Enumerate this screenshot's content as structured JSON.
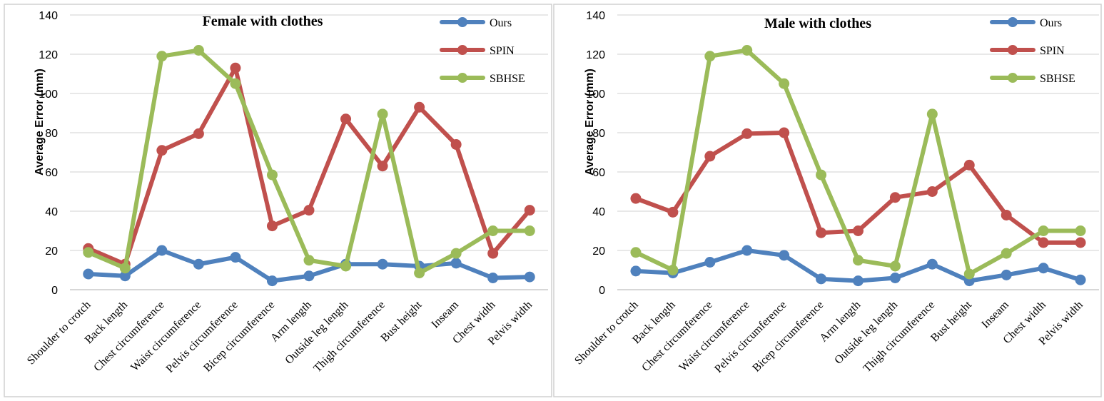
{
  "colors": {
    "Ours": "#4f81bd",
    "SPIN": "#c0504d",
    "SBHSE": "#9bbb59"
  },
  "chart_data": [
    {
      "type": "line",
      "title": "Female with clothes",
      "ylabel": "Average Error (mm)",
      "xlabel": "",
      "ylim": [
        0,
        140
      ],
      "yticks": [
        "0",
        "20",
        "40",
        "60",
        "80",
        "100",
        "120",
        "140"
      ],
      "grid": true,
      "legend": "top-right",
      "categories": [
        "Shoulder to crotch",
        "Back length",
        "Chest circumference",
        "Waist circumference",
        "Pelvis circumference",
        "Bicep circumference",
        "Arm length",
        "Outside leg length",
        "Thigh circumference",
        "Bust height",
        "Inseam",
        "Chest width",
        "Pelvis width"
      ],
      "series": [
        {
          "name": "Ours",
          "values": [
            8,
            7,
            20,
            13,
            16.5,
            4.5,
            7,
            13,
            13,
            12,
            13.5,
            6,
            6.5
          ]
        },
        {
          "name": "SPIN",
          "values": [
            21,
            13,
            71,
            79.5,
            113,
            32.5,
            40.5,
            87,
            63,
            93,
            74,
            18.5,
            40.5
          ]
        },
        {
          "name": "SBHSE",
          "values": [
            19,
            11,
            119,
            122,
            105,
            58.5,
            15,
            12,
            89.5,
            8.5,
            18.5,
            30,
            30
          ]
        }
      ]
    },
    {
      "type": "line",
      "title": "Male with clothes",
      "ylabel": "Average Error (mm)",
      "xlabel": "",
      "ylim": [
        0,
        140
      ],
      "yticks": [
        "0",
        "20",
        "40",
        "60",
        "80",
        "100",
        "120",
        "140"
      ],
      "grid": true,
      "legend": "top-right",
      "categories": [
        "Shoulder to crotch",
        "Back length",
        "Chest circumference",
        "Waist circumference",
        "Pelvis circumference",
        "Bicep circumference",
        "Arm length",
        "Outside leg length",
        "Thigh circumference",
        "Bust height",
        "Inseam",
        "Chest width",
        "Pelvis width"
      ],
      "series": [
        {
          "name": "Ours",
          "values": [
            9.5,
            8.5,
            14,
            20,
            17.5,
            5.5,
            4.5,
            6,
            13,
            4.5,
            7.5,
            11,
            5
          ]
        },
        {
          "name": "SPIN",
          "values": [
            46.5,
            39.5,
            68,
            79.5,
            80,
            29,
            30,
            47,
            50,
            63.5,
            38,
            24,
            24
          ]
        },
        {
          "name": "SBHSE",
          "values": [
            19,
            10,
            119,
            122,
            105,
            58.5,
            15,
            12,
            89.5,
            8,
            18.5,
            30,
            30
          ]
        }
      ]
    }
  ]
}
